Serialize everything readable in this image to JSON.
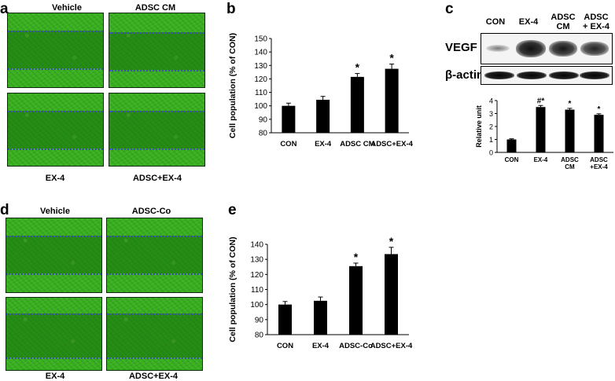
{
  "panels": {
    "a": {
      "letter": "a",
      "top_left": "Vehicle",
      "top_right": "ADSC CM",
      "bottom_left": "EX-4",
      "bottom_right": "ADSC+EX-4"
    },
    "d": {
      "letter": "d",
      "top_left": "Vehicle",
      "top_right": "ADSC-Co",
      "bottom_left": "EX-4",
      "bottom_right": "ADSC+EX-4"
    },
    "b": {
      "letter": "b"
    },
    "e": {
      "letter": "e"
    },
    "c": {
      "letter": "c",
      "lanes": [
        "CON",
        "EX-4",
        "ADSC\nCM",
        "ADSC\n+ EX-4"
      ],
      "vegf_label": "VEGF",
      "actin_label": "β-actin"
    }
  },
  "colors": {
    "bar": "#000000",
    "micrograph": "#39b022",
    "dotted_line": "#3a4fb0"
  },
  "chart_data": [
    {
      "id": "b",
      "type": "bar",
      "categories": [
        "CON",
        "EX-4",
        "ADSC CM",
        "ADSC+EX-4"
      ],
      "values": [
        100,
        104.5,
        121.5,
        127.5
      ],
      "errors": [
        2,
        2.5,
        2.5,
        3.5
      ],
      "annotations": [
        "",
        "",
        "*",
        "*"
      ],
      "ylabel": "Cell population (% of CON)",
      "ylim": [
        80,
        150
      ],
      "yticks": [
        80,
        90,
        100,
        110,
        120,
        130,
        140,
        150
      ]
    },
    {
      "id": "e",
      "type": "bar",
      "categories": [
        "CON",
        "EX-4",
        "ADSC-Co",
        "ADSC+EX-4"
      ],
      "values": [
        100,
        102.5,
        125.5,
        133.5
      ],
      "errors": [
        2,
        2.5,
        2,
        4.5
      ],
      "annotations": [
        "",
        "",
        "*",
        "*"
      ],
      "ylabel": "Cell population (% of CON)",
      "ylim": [
        80,
        140
      ],
      "yticks": [
        80,
        90,
        100,
        110,
        120,
        130,
        140
      ]
    },
    {
      "id": "c",
      "type": "bar",
      "categories": [
        "CON",
        "EX-4",
        "ADSC\nCM",
        "ADSC\n+EX-4"
      ],
      "values": [
        1.0,
        3.5,
        3.3,
        2.9
      ],
      "errors": [
        0.05,
        0.12,
        0.1,
        0.08
      ],
      "annotations": [
        "",
        "#*",
        "*",
        "*"
      ],
      "ylabel": "Relative unit",
      "ylim": [
        0,
        4
      ],
      "yticks": [
        0,
        1,
        2,
        3,
        4
      ]
    }
  ]
}
